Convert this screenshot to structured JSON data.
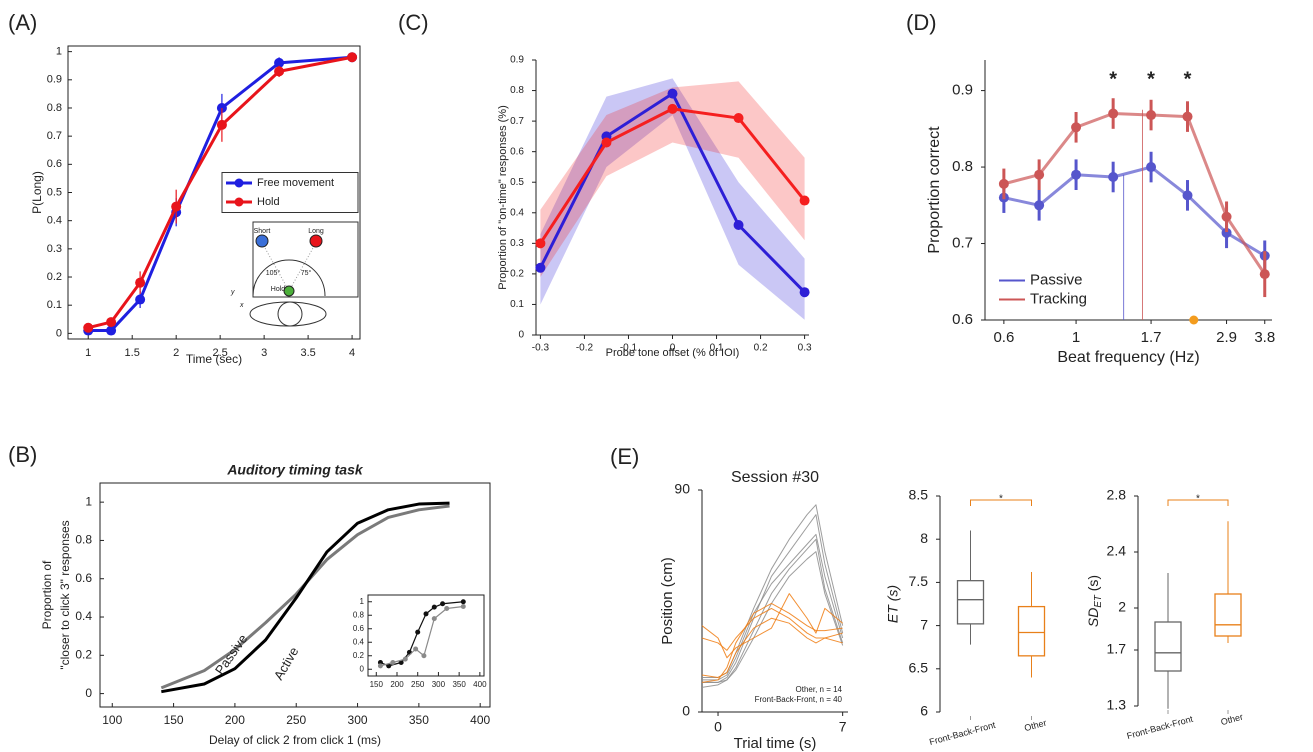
{
  "chart_data": [
    {
      "panel": "(A)",
      "type": "line",
      "xlabel": "Time (sec)",
      "ylabel": "P(Long)",
      "x": [
        1,
        1.26,
        1.59,
        2,
        2.52,
        3.17,
        4
      ],
      "series": [
        {
          "name": "Free movement",
          "color": "#1f1fe0",
          "values": [
            0.01,
            0.01,
            0.12,
            0.43,
            0.8,
            0.96,
            0.98
          ],
          "errors": [
            0.01,
            0.01,
            0.03,
            0.05,
            0.05,
            0.02,
            0.01
          ]
        },
        {
          "name": "Hold",
          "color": "#e8141b",
          "values": [
            0.02,
            0.04,
            0.18,
            0.45,
            0.74,
            0.93,
            0.98
          ],
          "errors": [
            0.01,
            0.01,
            0.04,
            0.06,
            0.06,
            0.02,
            0.01
          ]
        }
      ],
      "xlim": [
        0.77,
        4.09
      ],
      "ylim": [
        -0.02,
        1.02
      ],
      "xticks": [
        1,
        1.5,
        2,
        2.5,
        3,
        3.5,
        4
      ],
      "yticks": [
        0,
        0.1,
        0.2,
        0.3,
        0.4,
        0.5,
        0.6,
        0.7,
        0.8,
        0.9,
        1
      ],
      "legend": "center right",
      "markers": true,
      "inset": {
        "short": "Short",
        "long": "Long",
        "angle_left": "105°",
        "angle_right": "75°",
        "hold": "Hold",
        "y": "y",
        "x": "x"
      }
    },
    {
      "panel": "(C)",
      "type": "line",
      "xlabel": "Probe tone offset (% of IOI)",
      "ylabel": "Proportion of \"on-time\" responses (%)",
      "x": [
        -0.3,
        -0.15,
        0,
        0.15,
        0.3
      ],
      "series": [
        {
          "color": "#2d1fd6",
          "values": [
            0.22,
            0.65,
            0.79,
            0.36,
            0.14
          ],
          "lower": [
            0.1,
            0.55,
            0.72,
            0.23,
            0.05
          ],
          "upper": [
            0.33,
            0.78,
            0.84,
            0.5,
            0.25
          ]
        },
        {
          "color": "#f51f1f",
          "values": [
            0.3,
            0.63,
            0.74,
            0.71,
            0.44
          ],
          "lower": [
            0.19,
            0.52,
            0.63,
            0.58,
            0.31
          ],
          "upper": [
            0.41,
            0.72,
            0.81,
            0.83,
            0.58
          ]
        }
      ],
      "xlim": [
        -0.31,
        0.31
      ],
      "ylim": [
        0,
        0.9
      ],
      "xticks": [
        -0.3,
        -0.2,
        -0.1,
        0,
        0.1,
        0.2,
        0.3
      ],
      "yticks": [
        0,
        0.1,
        0.2,
        0.3,
        0.4,
        0.5,
        0.6,
        0.7,
        0.8,
        0.9
      ],
      "markers": true
    },
    {
      "panel": "(D)",
      "type": "line",
      "xlabel": "Beat frequency (Hz)",
      "ylabel": "Proportion correct",
      "xscale": "log",
      "x": [
        0.6,
        0.77,
        1,
        1.3,
        1.7,
        2.2,
        2.9,
        3.8
      ],
      "series": [
        {
          "name": "Passive",
          "color": "#5656cc",
          "values": [
            0.76,
            0.75,
            0.79,
            0.787,
            0.8,
            0.763,
            0.714,
            0.684
          ],
          "errors": [
            0.02,
            0.02,
            0.02,
            0.02,
            0.02,
            0.02,
            0.02,
            0.02
          ],
          "peak": {
            "x": 1.4,
            "y": 0.79
          }
        },
        {
          "name": "Tracking",
          "color": "#cc5656",
          "values": [
            0.778,
            0.79,
            0.852,
            0.87,
            0.868,
            0.866,
            0.735,
            0.66
          ],
          "errors": [
            0.02,
            0.02,
            0.02,
            0.02,
            0.02,
            0.02,
            0.02,
            0.03
          ],
          "peak": {
            "x": 1.6,
            "y": 0.875
          }
        }
      ],
      "xlim": [
        0.525,
        4.0
      ],
      "ylim": [
        0.6,
        0.94
      ],
      "xticks": [
        0.6,
        1,
        1.7,
        2.9,
        3.8
      ],
      "yticks": [
        0.6,
        0.7,
        0.8,
        0.9
      ],
      "legend": "lower left",
      "markers": true,
      "annotations": [
        {
          "x": 1.3,
          "text": "*"
        },
        {
          "x": 1.7,
          "text": "*"
        },
        {
          "x": 2.2,
          "text": "*"
        }
      ],
      "reference": {
        "x": 2.3,
        "color": "#f39c1e"
      }
    },
    {
      "panel": "(B)",
      "type": "line",
      "title": "Auditory timing task",
      "xlabel": "Delay of click 2 from click 1 (ms)",
      "ylabel": [
        "Proportion of",
        "\"closer to click 3\" responses"
      ],
      "x": [
        140,
        175,
        200,
        225,
        250,
        275,
        300,
        325,
        350,
        375
      ],
      "series": [
        {
          "name": "Passive",
          "color": "#7a7a7a",
          "values": [
            0.03,
            0.12,
            0.23,
            0.37,
            0.52,
            0.7,
            0.83,
            0.92,
            0.96,
            0.98
          ]
        },
        {
          "name": "Active",
          "color": "#000000",
          "values": [
            0.01,
            0.05,
            0.13,
            0.28,
            0.5,
            0.74,
            0.89,
            0.96,
            0.99,
            0.995
          ]
        }
      ],
      "xlim": [
        90,
        408
      ],
      "ylim": [
        -0.07,
        1.1
      ],
      "xticks": [
        100,
        150,
        200,
        250,
        300,
        350,
        400
      ],
      "yticks": [
        0,
        0.2,
        0.4,
        0.6,
        0.8,
        1
      ],
      "legend": "inline",
      "inset": {
        "type": "line",
        "xlim": [
          130,
          410
        ],
        "ylim": [
          -0.1,
          1.1
        ],
        "xticks": [
          150,
          200,
          250,
          300,
          350,
          400
        ],
        "yticks": [
          0,
          0.2,
          0.4,
          0.6,
          0.8,
          1
        ],
        "markers": true,
        "series": [
          {
            "color": "#111111",
            "x": [
              160,
              180,
              210,
              230,
              250,
              270,
              290,
              310,
              360
            ],
            "values": [
              0.1,
              0.05,
              0.1,
              0.25,
              0.55,
              0.82,
              0.92,
              0.97,
              1.0
            ]
          },
          {
            "color": "#8a8a8a",
            "x": [
              160,
              190,
              220,
              245,
              265,
              290,
              320,
              360
            ],
            "values": [
              0.05,
              0.1,
              0.15,
              0.3,
              0.2,
              0.75,
              0.9,
              0.93
            ]
          }
        ]
      }
    },
    {
      "panel": "(E)",
      "type": "line",
      "title": "Session #30",
      "xlabel": "Trial time (s)",
      "ylabel": "Position (cm)",
      "x": [
        -0.9,
        0,
        0.5,
        1,
        2,
        3,
        4,
        5,
        5.5,
        6,
        7
      ],
      "series": [
        {
          "color": "#8c8c8c",
          "values": [
            12,
            12,
            14,
            20,
            38,
            55,
            65,
            75,
            80,
            60,
            32
          ]
        },
        {
          "color": "#8c8c8c",
          "values": [
            13,
            13,
            15,
            22,
            40,
            52,
            60,
            68,
            72,
            55,
            30
          ]
        },
        {
          "color": "#8c8c8c",
          "values": [
            10,
            11,
            13,
            18,
            33,
            48,
            58,
            66,
            70,
            50,
            28
          ]
        },
        {
          "color": "#8c8c8c",
          "values": [
            14,
            14,
            16,
            24,
            42,
            58,
            70,
            80,
            84,
            65,
            35
          ]
        },
        {
          "color": "#8c8c8c",
          "values": [
            12,
            12,
            13,
            17,
            30,
            44,
            55,
            62,
            65,
            48,
            27
          ]
        },
        {
          "color": "#f07d12",
          "values": [
            12,
            13,
            18,
            28,
            40,
            44,
            40,
            35,
            33,
            33,
            34
          ]
        },
        {
          "color": "#f07d12",
          "values": [
            30,
            28,
            25,
            30,
            38,
            42,
            38,
            32,
            30,
            30,
            32
          ]
        },
        {
          "color": "#f07d12",
          "values": [
            15,
            14,
            16,
            24,
            34,
            38,
            36,
            30,
            28,
            30,
            28
          ]
        },
        {
          "color": "#f07d12",
          "values": [
            35,
            30,
            22,
            26,
            30,
            34,
            48,
            38,
            32,
            42,
            36
          ]
        }
      ],
      "xlim": [
        -0.9,
        7.3
      ],
      "ylim": [
        0,
        90
      ],
      "xticks": [
        0,
        7
      ],
      "yticks": [
        0,
        90
      ],
      "annotations": [
        {
          "text": "Other, n = 14",
          "color": "#f07d12"
        },
        {
          "text": "Front-Back-Front, n = 40",
          "color": "#777777"
        }
      ]
    },
    {
      "type": "box",
      "ylabel": "ET (s)",
      "categories": [
        "Front-Back-Front",
        "Other"
      ],
      "colors": [
        "#666666",
        "#e8801a"
      ],
      "boxes": [
        {
          "min": 6.78,
          "q1": 7.02,
          "median": 7.3,
          "q3": 7.52,
          "max": 8.1
        },
        {
          "min": 6.4,
          "q1": 6.65,
          "median": 6.92,
          "q3": 7.22,
          "max": 7.62
        }
      ],
      "ylim": [
        6,
        8.5
      ],
      "yticks": [
        6,
        6.5,
        7,
        7.5,
        8,
        8.5
      ],
      "significance": "*"
    },
    {
      "type": "box",
      "ylabel": {
        "main": "SD",
        "sub": "ET",
        "unit": " (s)"
      },
      "categories": [
        "Front-Back-Front",
        "Other"
      ],
      "colors": [
        "#666666",
        "#e8801a"
      ],
      "boxes": [
        {
          "min": 1.28,
          "q1": 1.55,
          "median": 1.68,
          "q3": 1.9,
          "max": 2.25
        },
        {
          "min": 1.75,
          "q1": 1.8,
          "median": 1.88,
          "q3": 2.1,
          "max": 2.62
        }
      ],
      "ylim": [
        1.3,
        2.8
      ],
      "yticks": [
        1.3,
        1.7,
        2,
        2.4,
        2.8
      ],
      "significance": "*"
    }
  ]
}
